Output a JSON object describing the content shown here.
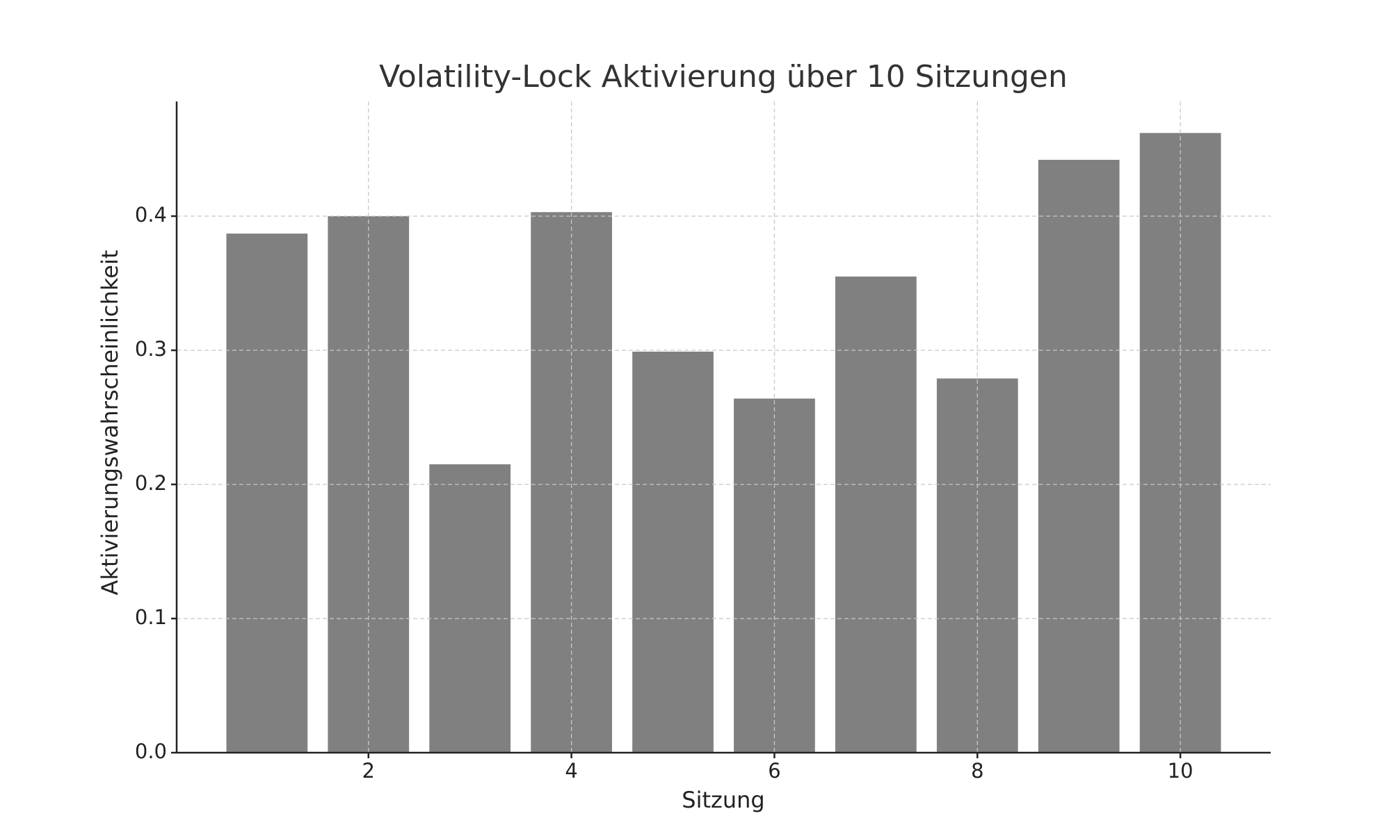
{
  "chart_data": {
    "type": "bar",
    "title": "Volatility-Lock Aktivierung über 10 Sitzungen",
    "xlabel": "Sitzung",
    "ylabel": "Aktivierungswahrscheinlichkeit",
    "x": [
      1,
      2,
      3,
      4,
      5,
      6,
      7,
      8,
      9,
      10
    ],
    "values": [
      0.387,
      0.4,
      0.215,
      0.403,
      0.299,
      0.264,
      0.355,
      0.279,
      0.442,
      0.462
    ],
    "color": "#808080",
    "xlim": [
      0.11,
      10.89
    ],
    "xticks": [
      2,
      4,
      6,
      8,
      10
    ],
    "ylim": [
      0,
      0.4855
    ],
    "yticks": [
      {
        "value": 0,
        "label": "0.0"
      },
      0.1,
      0.2,
      0.3,
      0.4
    ],
    "grid": true
  }
}
